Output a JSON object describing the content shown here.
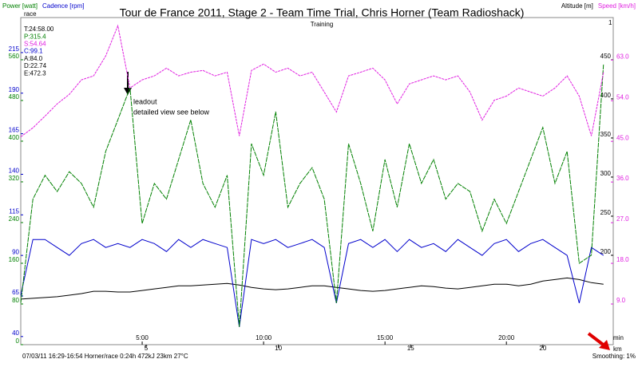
{
  "chart_data": {
    "type": "line",
    "title": "Tour de France 2011, Stage 2 - Team Time Trial, Chris Horner (Team Radioshack)",
    "subtitle": "Training",
    "plot_label": "race",
    "corner_label": "1",
    "x_unit": "min",
    "x2_unit": "km",
    "x": [
      0,
      0.5,
      1,
      1.5,
      2,
      2.5,
      3,
      3.5,
      4,
      4.5,
      5,
      5.5,
      6,
      6.5,
      7,
      7.5,
      8,
      8.5,
      9,
      9.5,
      10,
      10.5,
      11,
      11.5,
      12,
      12.5,
      13,
      13.5,
      14,
      14.5,
      15,
      15.5,
      16,
      16.5,
      17,
      17.5,
      18,
      18.5,
      19,
      19.5,
      20,
      20.5,
      21,
      21.5,
      22,
      22.5,
      23,
      23.5,
      24
    ],
    "xlim": [
      0,
      24.4
    ],
    "xticks": [
      {
        "value": 5,
        "label": "5:00"
      },
      {
        "value": 10,
        "label": "10:00"
      },
      {
        "value": 15,
        "label": "15:00"
      },
      {
        "value": 20,
        "label": "20:00"
      }
    ],
    "x2lim": [
      0.26,
      22.66
    ],
    "x2ticks": [
      5,
      10,
      15,
      20
    ],
    "ylim": [
      0,
      643
    ],
    "yticks": [
      0,
      80,
      160,
      240,
      320,
      400,
      480,
      560
    ],
    "y2lim": [
      35,
      236.6
    ],
    "y2ticks": [
      40,
      65,
      90,
      115,
      140,
      165,
      190,
      215
    ],
    "y3lim": [
      85.7,
      504
    ],
    "y3ticks": [
      200,
      250,
      300,
      350,
      400,
      450
    ],
    "y4lim": [
      0,
      72.4
    ],
    "y4ticks": [
      {
        "value": 9,
        "label": "9.0"
      },
      {
        "value": 18,
        "label": "18.0"
      },
      {
        "value": 27,
        "label": "27.0"
      },
      {
        "value": 36,
        "label": "36.0"
      },
      {
        "value": 45,
        "label": "45.0"
      },
      {
        "value": 54,
        "label": "54.0"
      },
      {
        "value": 63,
        "label": "63.0"
      }
    ],
    "series": [
      {
        "name": "Power [watt]",
        "color": "#008000",
        "axis": "y",
        "values": [
          82,
          286,
          333,
          301,
          340,
          317,
          270,
          380,
          442,
          505,
          238,
          317,
          286,
          364,
          442,
          317,
          270,
          333,
          35,
          395,
          333,
          458,
          270,
          317,
          348,
          286,
          82,
          395,
          317,
          223,
          364,
          270,
          395,
          317,
          364,
          286,
          317,
          301,
          223,
          286,
          238,
          301,
          364,
          427,
          317,
          380,
          160,
          176,
          552
        ]
      },
      {
        "name": "Cadence [rpm]",
        "color": "#0000cc",
        "axis": "y2",
        "values": [
          65.5,
          99.8,
          99.8,
          94.9,
          90,
          97.3,
          99.8,
          94.9,
          97.3,
          94.9,
          99.8,
          97.3,
          92.4,
          99.8,
          94.9,
          99.8,
          97.3,
          94.9,
          45.9,
          99.8,
          97.3,
          99.8,
          94.9,
          97.3,
          99.8,
          94.9,
          60.6,
          97.3,
          99.8,
          94.9,
          99.8,
          92.4,
          99.8,
          94.9,
          97.3,
          92.4,
          99.8,
          94.9,
          90,
          97.3,
          99.8,
          92.4,
          97.3,
          99.8,
          94.9,
          90,
          60.6,
          94.9,
          90
        ]
      },
      {
        "name": "Altitude [m]",
        "color": "#000000",
        "axis": "y3",
        "values": [
          144,
          145,
          146,
          147,
          149,
          151,
          154,
          154,
          153,
          153,
          155,
          157,
          159,
          161,
          161,
          162,
          163,
          164,
          162,
          159,
          157,
          156,
          157,
          159,
          161,
          161,
          159,
          157,
          155,
          154,
          155,
          157,
          159,
          161,
          160,
          158,
          157,
          159,
          161,
          163,
          163,
          161,
          163,
          167,
          169,
          171,
          169,
          165,
          163
        ]
      },
      {
        "name": "Speed [km/h]",
        "color": "#e020e0",
        "axis": "y4",
        "values": [
          46,
          48,
          50.6,
          53.3,
          55.4,
          58.6,
          59.5,
          63.9,
          70.6,
          56.8,
          58.6,
          59.5,
          61.2,
          59.5,
          60.3,
          60.7,
          59.5,
          60.3,
          46.2,
          60.7,
          62.1,
          60.3,
          61.2,
          59.5,
          60.3,
          55.9,
          51.5,
          59.5,
          60.3,
          61.2,
          58.6,
          53.3,
          57.7,
          58.6,
          59.5,
          58.6,
          59.5,
          55.9,
          49.7,
          54.1,
          55,
          56.8,
          55.9,
          55,
          56.8,
          59.5,
          55,
          46.2,
          60.3
        ]
      }
    ],
    "stats": [
      {
        "label": "T:24:58.00",
        "color": "#000000"
      },
      {
        "label": "P:315.4",
        "color": "#008000"
      },
      {
        "label": "S:54.64",
        "color": "#e020e0"
      },
      {
        "label": "C:99.1",
        "color": "#0000cc"
      },
      {
        "label": "A:84.0",
        "color": "#000000"
      },
      {
        "label": "D:22.74",
        "color": "#000000"
      },
      {
        "label": "E:472.3",
        "color": "#000000"
      }
    ],
    "annotations": [
      "leadout",
      "detailed view see below"
    ],
    "footer": "07/03/11 16:29-16:54 Horner/race 0:24h 472kJ 23km 27°C",
    "smoothing": "Smoothing: 1%"
  }
}
